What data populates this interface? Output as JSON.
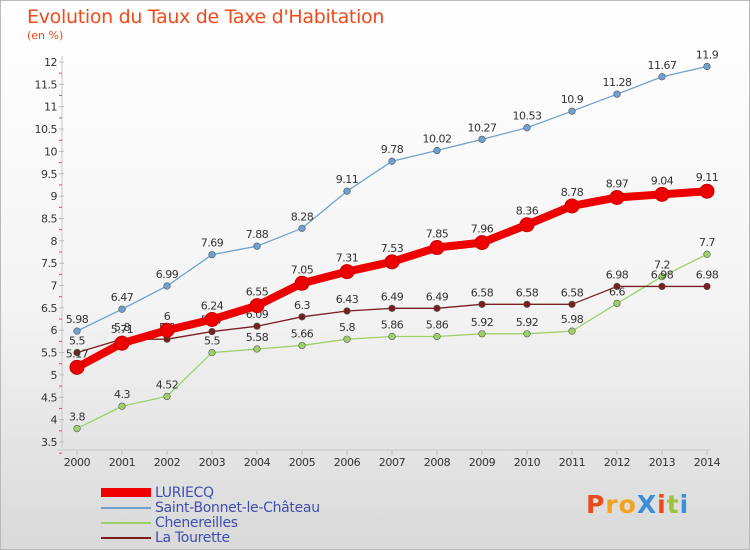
{
  "title": "Evolution du Taux de Taxe d'Habitation",
  "subtitle": "(en %)",
  "logo": {
    "text": "ProXiti",
    "letters": [
      "P",
      "r",
      "o",
      "X",
      "i",
      "t",
      "i"
    ],
    "colors": [
      "#e94b1e",
      "#f4a21d",
      "#f4a21d",
      "#3b8fd8",
      "#e94b1e",
      "#9bc43c",
      "#3b8fd8"
    ]
  },
  "chart_data": {
    "type": "line",
    "title": "Evolution du Taux de Taxe d'Habitation",
    "ylabel": "(en %)",
    "xlabel": "",
    "x": [
      2000,
      2001,
      2002,
      2003,
      2004,
      2005,
      2006,
      2007,
      2008,
      2009,
      2010,
      2011,
      2012,
      2013,
      2014
    ],
    "ylim": [
      3.5,
      12
    ],
    "yticks": [
      "3.5",
      "4",
      "4.5",
      "5",
      "5.5",
      "6",
      "6.5",
      "7",
      "7.5",
      "8",
      "8.5",
      "9",
      "9.5",
      "10",
      "10.5",
      "11",
      "11.5",
      "12"
    ],
    "grid": false,
    "legend_position": "bottom-left",
    "series": [
      {
        "name": "LURIECQ",
        "color": "#ee0000",
        "values": [
          5.17,
          5.71,
          6.0,
          6.24,
          6.55,
          7.05,
          7.31,
          7.53,
          7.85,
          7.96,
          8.36,
          8.78,
          8.97,
          9.04,
          9.11
        ],
        "labels": [
          "5.17",
          "5.71",
          "6",
          "6.24",
          "6.55",
          "7.05",
          "7.31",
          "7.53",
          "7.85",
          "7.96",
          "8.36",
          "8.78",
          "8.97",
          "9.04",
          "9.11"
        ]
      },
      {
        "name": "Saint-Bonnet-le-Château",
        "color": "#6fa1d0",
        "values": [
          5.98,
          6.47,
          6.99,
          7.69,
          7.88,
          8.28,
          9.11,
          9.78,
          10.02,
          10.27,
          10.53,
          10.9,
          11.28,
          11.67,
          11.9
        ],
        "labels": [
          "5.98",
          "6.47",
          "6.99",
          "7.69",
          "7.88",
          "8.28",
          "9.11",
          "9.78",
          "10.02",
          "10.27",
          "10.53",
          "10.9",
          "11.28",
          "11.67",
          "11.9"
        ]
      },
      {
        "name": "Chenereilles",
        "color": "#9ed06a",
        "values": [
          3.8,
          4.3,
          4.52,
          5.5,
          5.58,
          5.66,
          5.8,
          5.86,
          5.86,
          5.92,
          5.92,
          5.98,
          6.6,
          7.2,
          7.7
        ],
        "labels": [
          "3.8",
          "4.3",
          "4.52",
          "5.5",
          "5.58",
          "5.66",
          "5.8",
          "5.86",
          "5.86",
          "5.92",
          "5.92",
          "5.98",
          "6.6",
          "7.2",
          "7.7"
        ]
      },
      {
        "name": "La Tourette",
        "color": "#7a1f1f",
        "values": [
          5.5,
          5.8,
          5.8,
          5.97,
          6.09,
          6.3,
          6.43,
          6.49,
          6.49,
          6.58,
          6.58,
          6.58,
          6.98,
          6.98,
          6.98
        ],
        "labels": [
          "5.5",
          "5.8",
          "5.8",
          "5.97",
          "6.09",
          "6.3",
          "6.43",
          "6.49",
          "6.49",
          "6.58",
          "6.58",
          "6.58",
          "6.98",
          "6.98",
          "6.98"
        ]
      }
    ]
  }
}
